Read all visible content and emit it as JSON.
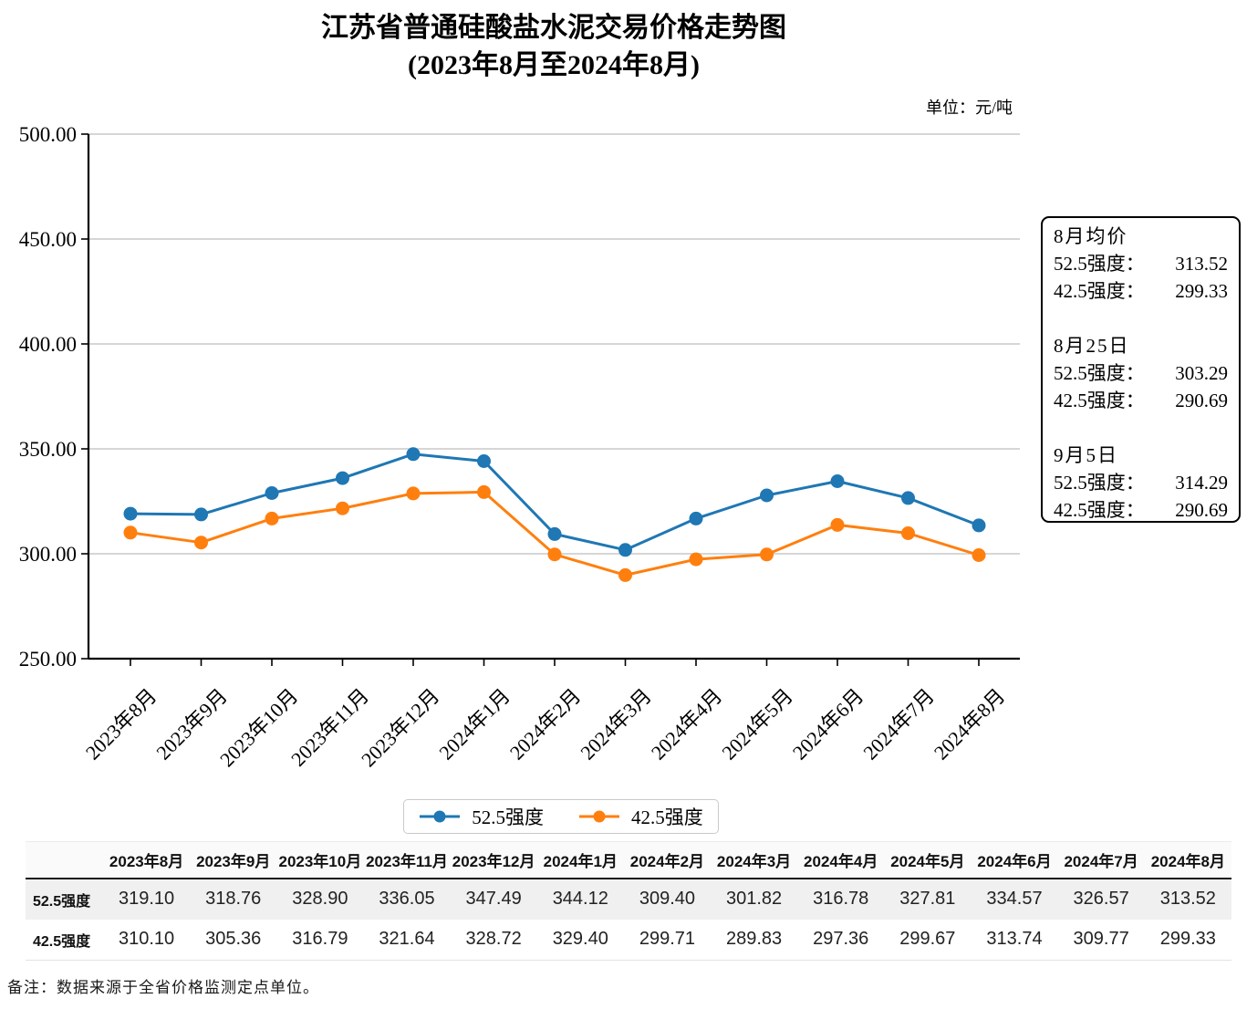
{
  "title": "江苏省普通硅酸盐水泥交易价格走势图",
  "subtitle": "(2023年8月至2024年8月)",
  "unit_label": "单位：元/吨",
  "note": "备注：数据来源于全省价格监测定点单位。",
  "colors": {
    "series_52_5": "#1f77b4",
    "series_42_5": "#ff7f0e",
    "grid": "#c8c8c8",
    "axis": "#000000"
  },
  "chart_data": {
    "type": "line",
    "title": "江苏省普通硅酸盐水泥交易价格走势图(2023年8月至2024年8月)",
    "unit": "元/吨",
    "categories": [
      "2023年8月",
      "2023年9月",
      "2023年10月",
      "2023年11月",
      "2023年12月",
      "2024年1月",
      "2024年2月",
      "2024年3月",
      "2024年4月",
      "2024年5月",
      "2024年6月",
      "2024年7月",
      "2024年8月"
    ],
    "series": [
      {
        "name": "52.5强度",
        "color": "#1f77b4",
        "values": [
          319.1,
          318.76,
          328.9,
          336.05,
          347.49,
          344.12,
          309.4,
          301.82,
          316.78,
          327.81,
          334.57,
          326.57,
          313.52
        ]
      },
      {
        "name": "42.5强度",
        "color": "#ff7f0e",
        "values": [
          310.1,
          305.36,
          316.79,
          321.64,
          328.72,
          329.4,
          299.71,
          289.83,
          297.36,
          299.67,
          313.74,
          309.77,
          299.33
        ]
      }
    ],
    "ylim": [
      250,
      500
    ],
    "yticks": [
      "250.00",
      "300.00",
      "350.00",
      "400.00",
      "450.00",
      "500.00"
    ],
    "grid": true,
    "marker": "circle",
    "legend_position": "bottom-center"
  },
  "annotation": {
    "sections": [
      {
        "title": "8月均价",
        "rows": [
          {
            "label": "52.5强度：",
            "value": "313.52"
          },
          {
            "label": "42.5强度：",
            "value": "299.33"
          }
        ]
      },
      {
        "title": "8月25日",
        "rows": [
          {
            "label": "52.5强度：",
            "value": "303.29"
          },
          {
            "label": "42.5强度：",
            "value": "290.69"
          }
        ]
      },
      {
        "title": "9月5日",
        "rows": [
          {
            "label": "52.5强度：",
            "value": "314.29"
          },
          {
            "label": "42.5强度：",
            "value": "290.69"
          }
        ]
      }
    ]
  },
  "table": {
    "corner_label": "",
    "columns": [
      "2023年8月",
      "2023年9月",
      "2023年10月",
      "2023年11月",
      "2023年12月",
      "2024年1月",
      "2024年2月",
      "2024年3月",
      "2024年4月",
      "2024年5月",
      "2024年6月",
      "2024年7月",
      "2024年8月"
    ],
    "rows": [
      {
        "label": "52.5强度",
        "values": [
          "319.10",
          "318.76",
          "328.90",
          "336.05",
          "347.49",
          "344.12",
          "309.40",
          "301.82",
          "316.78",
          "327.81",
          "334.57",
          "326.57",
          "313.52"
        ]
      },
      {
        "label": "42.5强度",
        "values": [
          "310.10",
          "305.36",
          "316.79",
          "321.64",
          "328.72",
          "329.40",
          "299.71",
          "289.83",
          "297.36",
          "299.67",
          "313.74",
          "309.77",
          "299.33"
        ]
      }
    ]
  }
}
